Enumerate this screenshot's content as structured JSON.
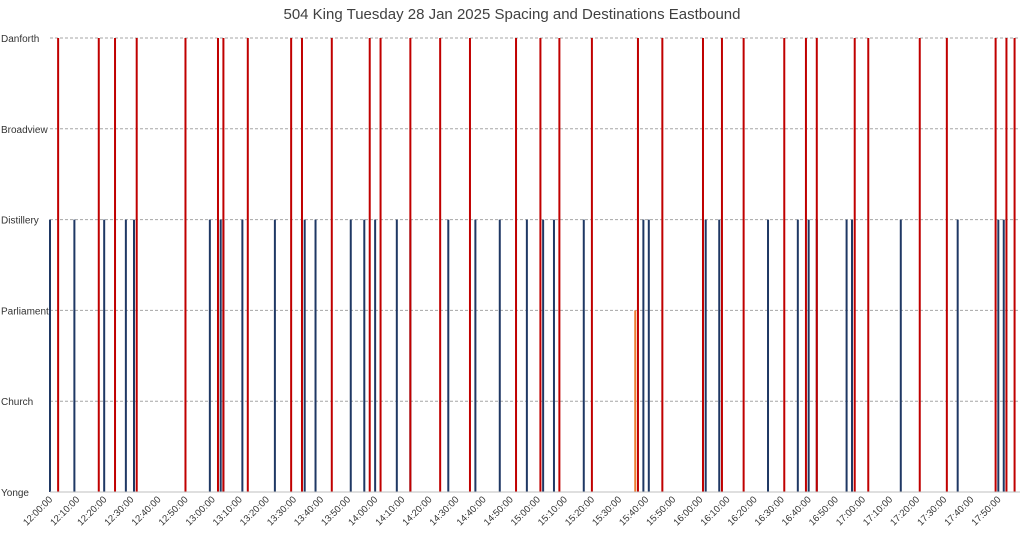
{
  "chart_data": {
    "type": "bar",
    "title": "504 King Tuesday 28 Jan 2025 Spacing and Destinations Eastbound",
    "xlabel": "",
    "ylabel": "",
    "y_categories": [
      "Yonge",
      "Church",
      "Parliament",
      "Distillery",
      "Broadview",
      "Danforth"
    ],
    "x_ticks": [
      "12:00:00",
      "12:10:00",
      "12:20:00",
      "12:30:00",
      "12:40:00",
      "12:50:00",
      "13:00:00",
      "13:10:00",
      "13:20:00",
      "13:30:00",
      "13:40:00",
      "13:50:00",
      "14:00:00",
      "14:10:00",
      "14:20:00",
      "14:30:00",
      "14:40:00",
      "14:50:00",
      "15:00:00",
      "15:10:00",
      "15:20:00",
      "15:30:00",
      "15:40:00",
      "15:50:00",
      "16:00:00",
      "16:10:00",
      "16:20:00",
      "16:30:00",
      "16:40:00",
      "16:50:00",
      "17:00:00",
      "17:10:00",
      "17:20:00",
      "17:30:00",
      "17:40:00",
      "17:50:00"
    ],
    "xlim": [
      "12:00:00",
      "17:58:00"
    ],
    "grid": "horizontal dashed",
    "series": [
      {
        "color": "#1f3864",
        "destination": "Distillery",
        "times": [
          "12:00:00",
          "12:09:00",
          "12:20:00",
          "12:28:00",
          "12:31:00",
          "12:59:00",
          "13:03:00",
          "13:04:00",
          "13:11:00",
          "13:23:00",
          "13:34:00",
          "13:38:00",
          "13:51:00",
          "13:56:00",
          "14:00:00",
          "14:08:00",
          "14:13:00",
          "14:27:00",
          "14:37:00",
          "14:46:00",
          "14:56:00",
          "15:02:00",
          "15:06:00",
          "15:17:00",
          "15:39:00",
          "15:41:00",
          "16:02:00",
          "16:07:00",
          "16:25:00",
          "16:36:00",
          "16:40:00",
          "16:43:00",
          "16:54:00",
          "16:56:00",
          "17:14:00",
          "17:35:00",
          "17:50:00",
          "17:52:00"
        ]
      },
      {
        "color": "#c00000",
        "destination": "Danforth",
        "times": [
          "12:03:00",
          "12:18:00",
          "12:24:00",
          "12:32:00",
          "12:50:00",
          "13:02:00",
          "13:04:00",
          "13:13:00",
          "13:29:00",
          "13:33:00",
          "13:44:00",
          "13:58:00",
          "14:02:00",
          "14:13:00",
          "14:24:00",
          "14:35:00",
          "14:52:00",
          "15:01:00",
          "15:08:00",
          "15:20:00",
          "15:37:00",
          "15:46:00",
          "16:01:00",
          "16:08:00",
          "16:16:00",
          "16:31:00",
          "16:39:00",
          "16:43:00",
          "16:57:00",
          "17:02:00",
          "17:21:00",
          "17:31:00",
          "17:49:00",
          "17:53:00",
          "17:56:00"
        ]
      },
      {
        "color": "#ed7d31",
        "destination": "Parliament",
        "times": [
          "15:36:00"
        ]
      }
    ]
  }
}
